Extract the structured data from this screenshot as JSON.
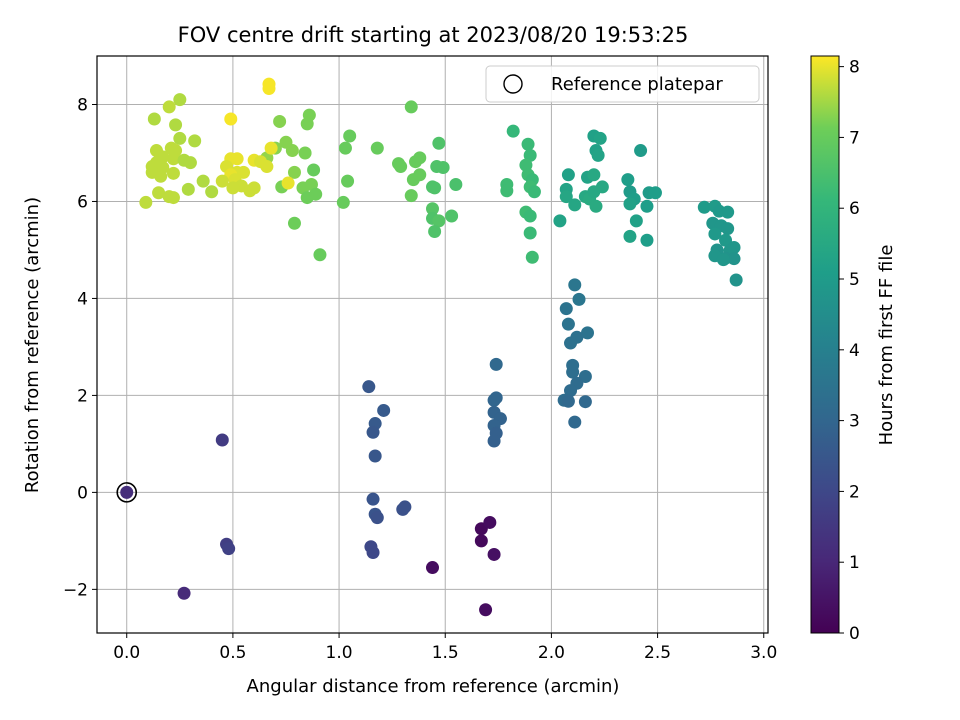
{
  "chart_data": {
    "type": "scatter",
    "title": "FOV centre drift starting at 2023/08/20 19:53:25",
    "xlabel": "Angular distance from reference (arcmin)",
    "ylabel": "Rotation from reference (arcmin)",
    "xlim": [
      -0.14,
      3.02
    ],
    "ylim": [
      -2.9,
      9.0
    ],
    "xticks": [
      "0.0",
      "0.5",
      "1.0",
      "1.5",
      "2.0",
      "2.5",
      "3.0"
    ],
    "yticks": [
      "−2",
      "0",
      "2",
      "4",
      "6",
      "8"
    ],
    "grid": true,
    "legend": {
      "position": "top-right",
      "entries": [
        "Reference platepar"
      ]
    },
    "colorbar": {
      "label": "Hours from first FF file",
      "colormap": "viridis",
      "range": [
        0,
        8.15
      ],
      "ticks": [
        "0",
        "1",
        "2",
        "3",
        "4",
        "5",
        "6",
        "7",
        "8"
      ]
    },
    "reference": {
      "name": "Reference platepar",
      "x": 0.0,
      "y": 0.0
    },
    "points": [
      [
        0.0,
        0.0,
        1.2
      ],
      [
        0.27,
        -2.08,
        1.1
      ],
      [
        1.44,
        -1.55,
        0.3
      ],
      [
        1.69,
        -2.42,
        0.3
      ],
      [
        1.67,
        -0.75,
        0.2
      ],
      [
        1.71,
        -0.62,
        0.3
      ],
      [
        1.67,
        -1.0,
        0.2
      ],
      [
        1.73,
        -1.28,
        0.4
      ],
      [
        0.45,
        1.08,
        1.6
      ],
      [
        0.47,
        -1.07,
        1.7
      ],
      [
        0.48,
        -1.16,
        1.8
      ],
      [
        1.14,
        2.18,
        2.5
      ],
      [
        1.21,
        1.69,
        2.6
      ],
      [
        1.17,
        1.42,
        2.6
      ],
      [
        1.16,
        1.24,
        2.5
      ],
      [
        1.17,
        0.75,
        2.5
      ],
      [
        1.16,
        -0.14,
        2.4
      ],
      [
        1.17,
        -0.45,
        2.4
      ],
      [
        1.18,
        -0.52,
        2.3
      ],
      [
        1.15,
        -1.12,
        2.0
      ],
      [
        1.16,
        -1.24,
        2.0
      ],
      [
        1.3,
        -0.35,
        2.3
      ],
      [
        1.31,
        -0.3,
        2.3
      ],
      [
        1.74,
        2.64,
        3.1
      ],
      [
        1.73,
        1.9,
        3.0
      ],
      [
        1.74,
        1.95,
        3.0
      ],
      [
        1.73,
        1.65,
        2.9
      ],
      [
        1.76,
        1.52,
        2.9
      ],
      [
        1.73,
        1.38,
        2.9
      ],
      [
        1.74,
        1.22,
        2.8
      ],
      [
        1.73,
        1.06,
        2.8
      ],
      [
        2.11,
        4.28,
        3.6
      ],
      [
        2.13,
        3.98,
        3.6
      ],
      [
        2.07,
        3.79,
        3.5
      ],
      [
        2.08,
        3.47,
        3.5
      ],
      [
        2.17,
        3.29,
        3.5
      ],
      [
        2.12,
        3.2,
        3.4
      ],
      [
        2.09,
        3.08,
        3.4
      ],
      [
        2.1,
        2.62,
        3.3
      ],
      [
        2.1,
        2.48,
        3.3
      ],
      [
        2.16,
        2.39,
        3.3
      ],
      [
        2.12,
        2.25,
        3.2
      ],
      [
        2.09,
        2.1,
        3.2
      ],
      [
        2.06,
        1.9,
        3.2
      ],
      [
        2.08,
        1.88,
        3.1
      ],
      [
        2.16,
        1.87,
        3.1
      ],
      [
        2.11,
        1.45,
        3.1
      ],
      [
        2.08,
        6.55,
        5.2
      ],
      [
        2.04,
        5.6,
        5.3
      ],
      [
        2.07,
        6.25,
        5.3
      ],
      [
        2.07,
        6.1,
        5.4
      ],
      [
        2.11,
        5.93,
        5.4
      ],
      [
        2.17,
        6.5,
        5.3
      ],
      [
        2.2,
        7.35,
        5.2
      ],
      [
        2.23,
        7.3,
        5.3
      ],
      [
        2.21,
        7.05,
        5.2
      ],
      [
        2.22,
        6.95,
        5.3
      ],
      [
        2.2,
        6.55,
        5.5
      ],
      [
        2.16,
        6.1,
        5.5
      ],
      [
        2.18,
        6.05,
        5.6
      ],
      [
        2.21,
        5.9,
        5.6
      ],
      [
        2.2,
        6.2,
        5.5
      ],
      [
        2.24,
        6.3,
        5.5
      ],
      [
        2.36,
        6.45,
        5.1
      ],
      [
        2.37,
        6.2,
        5.0
      ],
      [
        2.39,
        6.05,
        5.1
      ],
      [
        2.37,
        5.95,
        5.2
      ],
      [
        2.4,
        5.6,
        5.2
      ],
      [
        2.37,
        5.28,
        5.3
      ],
      [
        2.42,
        7.05,
        5.0
      ],
      [
        2.45,
        5.2,
        5.1
      ],
      [
        2.45,
        5.9,
        5.1
      ],
      [
        2.46,
        6.18,
        5.0
      ],
      [
        2.49,
        6.18,
        5.1
      ],
      [
        2.72,
        5.88,
        5.0
      ],
      [
        2.77,
        5.9,
        5.0
      ],
      [
        2.79,
        5.8,
        4.9
      ],
      [
        2.83,
        5.78,
        4.9
      ],
      [
        2.76,
        5.55,
        4.8
      ],
      [
        2.8,
        5.5,
        4.8
      ],
      [
        2.83,
        5.44,
        4.8
      ],
      [
        2.77,
        5.33,
        4.9
      ],
      [
        2.82,
        5.2,
        4.9
      ],
      [
        2.86,
        5.05,
        4.8
      ],
      [
        2.78,
        5.0,
        4.7
      ],
      [
        2.84,
        4.98,
        4.8
      ],
      [
        2.77,
        4.88,
        4.8
      ],
      [
        2.82,
        4.83,
        4.7
      ],
      [
        2.86,
        4.82,
        4.7
      ],
      [
        2.81,
        4.8,
        4.8
      ],
      [
        2.87,
        4.38,
        4.7
      ],
      [
        1.82,
        7.45,
        6.1
      ],
      [
        1.89,
        7.18,
        6.2
      ],
      [
        1.9,
        6.95,
        6.2
      ],
      [
        1.88,
        6.75,
        6.3
      ],
      [
        1.89,
        6.55,
        6.3
      ],
      [
        1.91,
        6.45,
        6.2
      ],
      [
        1.79,
        6.35,
        6.3
      ],
      [
        1.9,
        6.3,
        6.3
      ],
      [
        1.79,
        6.22,
        6.3
      ],
      [
        1.92,
        6.2,
        6.2
      ],
      [
        1.88,
        5.78,
        6.3
      ],
      [
        1.9,
        5.7,
        6.2
      ],
      [
        1.9,
        5.35,
        6.2
      ],
      [
        1.91,
        4.85,
        6.3
      ],
      [
        1.47,
        7.2,
        6.6
      ],
      [
        1.44,
        6.3,
        6.6
      ],
      [
        1.46,
        6.72,
        6.6
      ],
      [
        1.49,
        6.7,
        6.6
      ],
      [
        1.55,
        6.35,
        6.5
      ],
      [
        1.44,
        5.85,
        6.7
      ],
      [
        1.44,
        5.65,
        6.6
      ],
      [
        1.47,
        5.6,
        6.7
      ],
      [
        1.45,
        5.38,
        6.6
      ],
      [
        1.53,
        5.7,
        6.6
      ],
      [
        1.45,
        6.28,
        6.6
      ],
      [
        1.34,
        7.95,
        7.0
      ],
      [
        1.36,
        6.82,
        7.0
      ],
      [
        1.38,
        6.9,
        7.0
      ],
      [
        1.28,
        6.78,
        7.0
      ],
      [
        1.29,
        6.72,
        7.0
      ],
      [
        1.35,
        6.45,
        7.0
      ],
      [
        1.38,
        6.55,
        7.0
      ],
      [
        1.34,
        6.12,
        7.0
      ],
      [
        1.05,
        7.35,
        7.0
      ],
      [
        1.03,
        7.1,
        7.0
      ],
      [
        1.18,
        7.1,
        7.0
      ],
      [
        1.04,
        6.42,
        7.0
      ],
      [
        1.02,
        5.98,
        7.0
      ],
      [
        0.91,
        4.9,
        7.0
      ],
      [
        0.88,
        6.65,
        7.0
      ],
      [
        0.86,
        7.78,
        7.2
      ],
      [
        0.85,
        7.6,
        7.2
      ],
      [
        0.84,
        7.0,
        7.2
      ],
      [
        0.72,
        7.65,
        7.3
      ],
      [
        0.75,
        7.22,
        7.3
      ],
      [
        0.7,
        7.1,
        7.3
      ],
      [
        0.78,
        7.05,
        7.3
      ],
      [
        0.66,
        6.9,
        7.4
      ],
      [
        0.79,
        6.6,
        7.3
      ],
      [
        0.73,
        6.3,
        7.2
      ],
      [
        0.83,
        6.28,
        7.2
      ],
      [
        0.87,
        6.35,
        7.2
      ],
      [
        0.89,
        6.15,
        7.1
      ],
      [
        0.85,
        6.08,
        7.1
      ],
      [
        0.79,
        5.55,
        7.1
      ],
      [
        0.25,
        8.1,
        7.6
      ],
      [
        0.2,
        7.95,
        7.7
      ],
      [
        0.13,
        7.7,
        7.6
      ],
      [
        0.23,
        7.58,
        7.6
      ],
      [
        0.32,
        7.25,
        7.6
      ],
      [
        0.25,
        7.3,
        7.6
      ],
      [
        0.21,
        7.1,
        7.7
      ],
      [
        0.23,
        7.05,
        7.7
      ],
      [
        0.14,
        7.05,
        7.7
      ],
      [
        0.17,
        6.92,
        7.7
      ],
      [
        0.22,
        6.88,
        7.7
      ],
      [
        0.27,
        6.85,
        7.6
      ],
      [
        0.3,
        6.8,
        7.6
      ],
      [
        0.14,
        6.8,
        7.7
      ],
      [
        0.12,
        6.72,
        7.7
      ],
      [
        0.17,
        6.7,
        7.7
      ],
      [
        0.12,
        6.6,
        7.7
      ],
      [
        0.22,
        6.58,
        7.7
      ],
      [
        0.16,
        6.52,
        7.7
      ],
      [
        0.36,
        6.42,
        7.6
      ],
      [
        0.29,
        6.25,
        7.6
      ],
      [
        0.15,
        6.18,
        7.7
      ],
      [
        0.2,
        6.1,
        7.7
      ],
      [
        0.22,
        6.08,
        7.7
      ],
      [
        0.09,
        5.98,
        7.7
      ],
      [
        0.4,
        6.2,
        7.6
      ],
      [
        0.67,
        8.42,
        8.1
      ],
      [
        0.67,
        8.33,
        8.1
      ],
      [
        0.49,
        7.7,
        8.1
      ],
      [
        0.68,
        7.1,
        8.0
      ],
      [
        0.49,
        6.88,
        8.0
      ],
      [
        0.52,
        6.88,
        8.0
      ],
      [
        0.6,
        6.85,
        8.0
      ],
      [
        0.63,
        6.82,
        7.9
      ],
      [
        0.47,
        6.72,
        7.9
      ],
      [
        0.52,
        6.6,
        7.9
      ],
      [
        0.55,
        6.6,
        7.9
      ],
      [
        0.66,
        6.72,
        7.9
      ],
      [
        0.49,
        6.55,
        8.0
      ],
      [
        0.51,
        6.45,
        7.9
      ],
      [
        0.45,
        6.42,
        7.8
      ],
      [
        0.54,
        6.32,
        7.8
      ],
      [
        0.5,
        6.28,
        7.8
      ],
      [
        0.58,
        6.22,
        7.8
      ],
      [
        0.6,
        6.28,
        7.8
      ],
      [
        0.76,
        6.38,
        8.0
      ]
    ]
  }
}
